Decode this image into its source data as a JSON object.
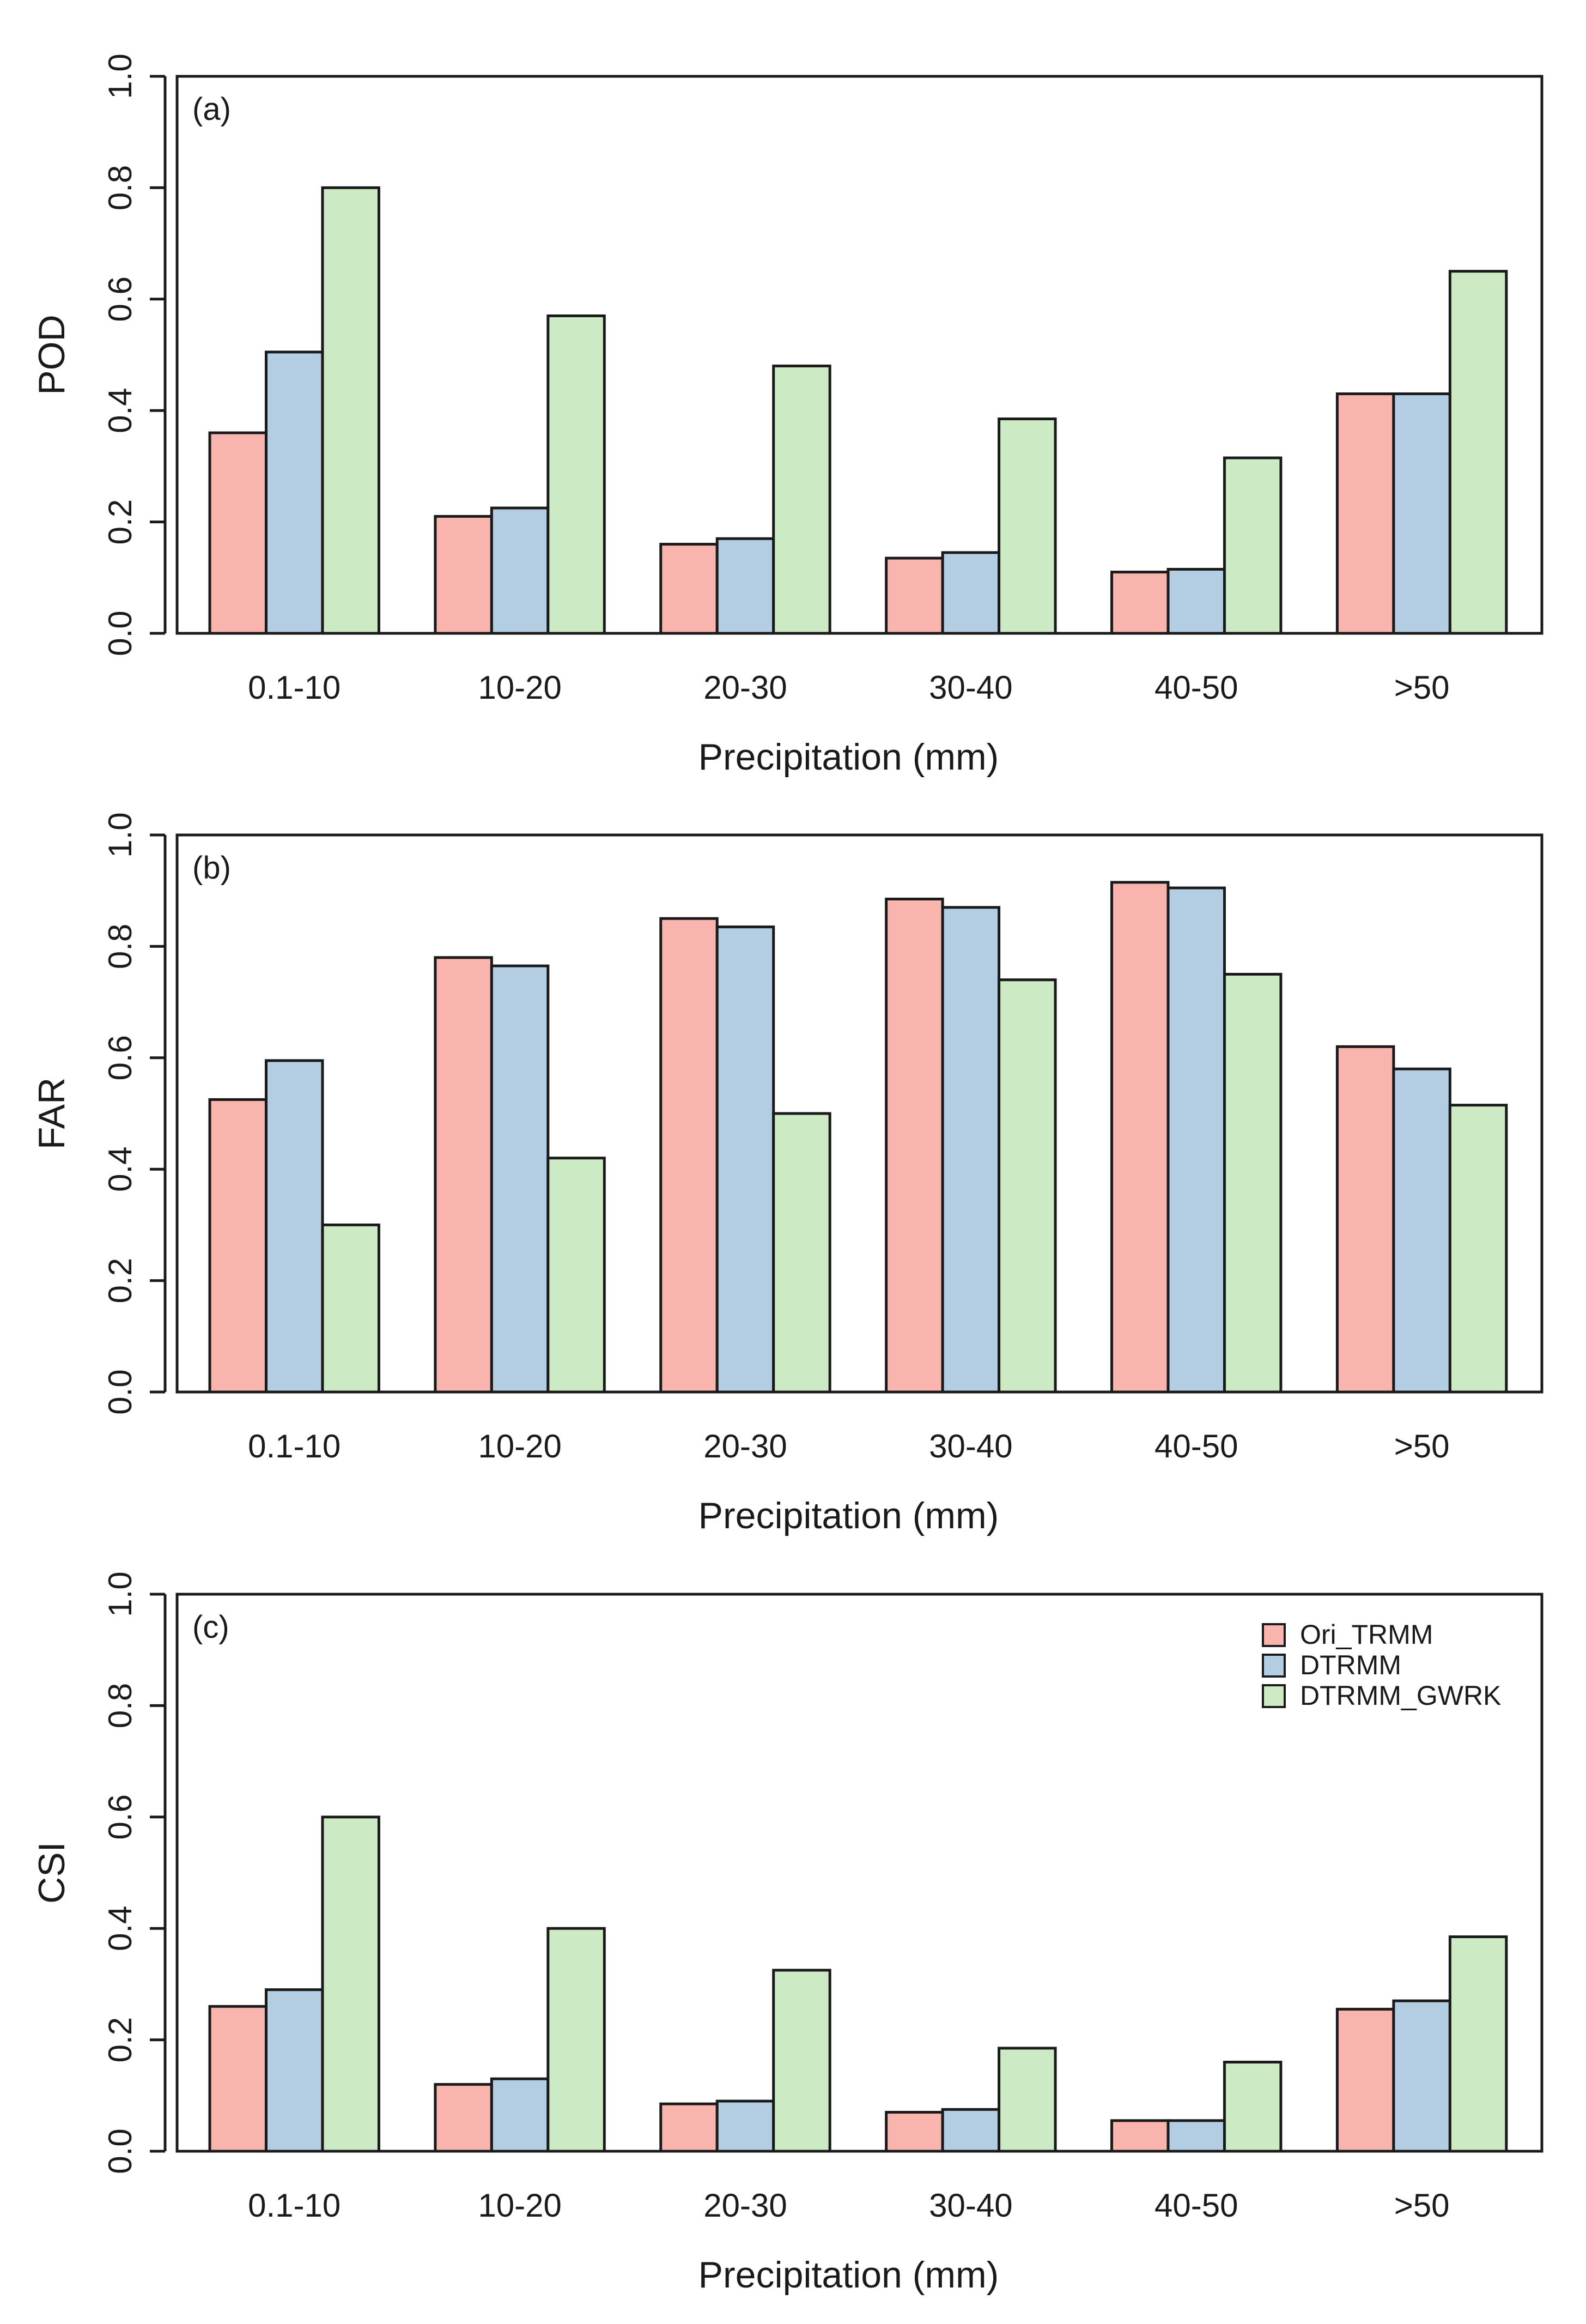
{
  "colors": {
    "Ori_TRMM": "#F9B4AE",
    "DTRMM": "#B3CDE3",
    "DTRMM_GWRK": "#CCEBC5"
  },
  "chart_data": [
    {
      "type": "bar",
      "panel_label": "(a)",
      "ylabel": "POD",
      "xlabel": "Precipitation (mm)",
      "categories": [
        "0.1-10",
        "10-20",
        "20-30",
        "30-40",
        "40-50",
        ">50"
      ],
      "ylim": [
        0,
        1
      ],
      "yticks": [
        "0.0",
        "0.2",
        "0.4",
        "0.6",
        "0.8",
        "1.0"
      ],
      "legend": false,
      "series": [
        {
          "values": [
            0.36,
            0.21,
            0.16,
            0.135,
            0.11,
            0.43
          ]
        },
        {
          "values": [
            0.505,
            0.225,
            0.17,
            0.145,
            0.115,
            0.43
          ]
        },
        {
          "values": [
            0.8,
            0.57,
            0.48,
            0.385,
            0.315,
            0.65
          ]
        }
      ]
    },
    {
      "type": "bar",
      "panel_label": "(b)",
      "ylabel": "FAR",
      "xlabel": "Precipitation (mm)",
      "categories": [
        "0.1-10",
        "10-20",
        "20-30",
        "30-40",
        "40-50",
        ">50"
      ],
      "ylim": [
        0,
        1
      ],
      "yticks": [
        "0.0",
        "0.2",
        "0.4",
        "0.6",
        "0.8",
        "1.0"
      ],
      "legend": false,
      "series": [
        {
          "values": [
            0.525,
            0.78,
            0.85,
            0.885,
            0.915,
            0.62
          ]
        },
        {
          "values": [
            0.595,
            0.765,
            0.835,
            0.87,
            0.905,
            0.58
          ]
        },
        {
          "values": [
            0.3,
            0.42,
            0.5,
            0.74,
            0.75,
            0.515
          ]
        }
      ]
    },
    {
      "type": "bar",
      "panel_label": "(c)",
      "ylabel": "CSI",
      "xlabel": "Precipitation (mm)",
      "categories": [
        "0.1-10",
        "10-20",
        "20-30",
        "30-40",
        "40-50",
        ">50"
      ],
      "ylim": [
        0,
        1
      ],
      "yticks": [
        "0.0",
        "0.2",
        "0.4",
        "0.6",
        "0.8",
        "1.0"
      ],
      "legend": "top-right",
      "series": [
        {
          "name": "Ori_TRMM",
          "values": [
            0.26,
            0.12,
            0.085,
            0.07,
            0.055,
            0.255
          ]
        },
        {
          "name": "DTRMM",
          "values": [
            0.29,
            0.13,
            0.09,
            0.075,
            0.055,
            0.27
          ]
        },
        {
          "name": "DTRMM_GWRK",
          "values": [
            0.6,
            0.4,
            0.325,
            0.185,
            0.16,
            0.385
          ]
        }
      ]
    }
  ]
}
